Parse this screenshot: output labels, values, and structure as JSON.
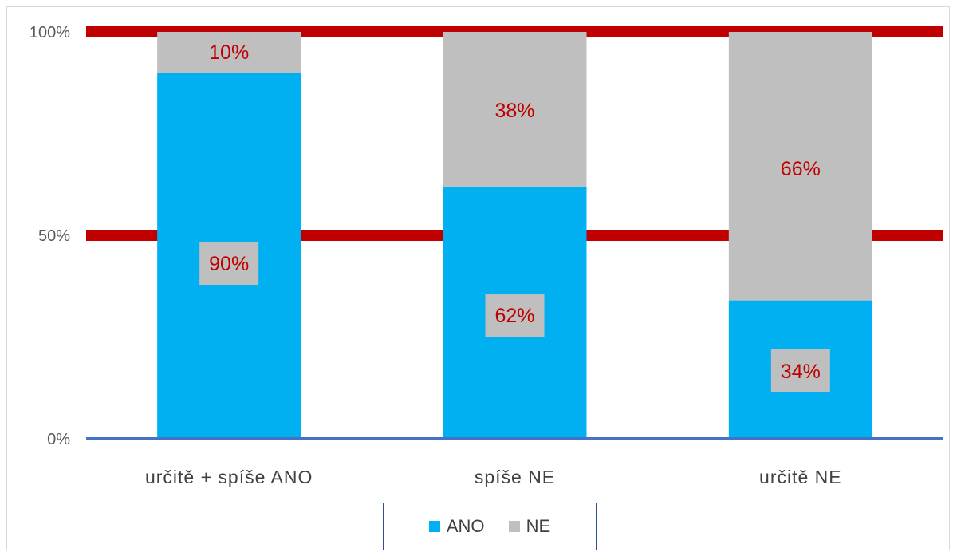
{
  "chart_data": {
    "type": "bar",
    "stacked": true,
    "percent": true,
    "categories": [
      "určitě + spíše ANO",
      "spíše NE",
      "určitě NE"
    ],
    "series": [
      {
        "name": "ANO",
        "values": [
          90,
          62,
          34
        ],
        "labels": [
          "90%",
          "62%",
          "34%"
        ],
        "color": "#00b0f0"
      },
      {
        "name": "NE",
        "values": [
          10,
          38,
          66
        ],
        "labels": [
          "10%",
          "38%",
          "66%"
        ],
        "color": "#bfbfbf"
      }
    ],
    "y_ticks": [
      "0%",
      "50%",
      "100%"
    ],
    "ylim": [
      0,
      100
    ],
    "reference_lines": [
      50,
      100
    ],
    "reference_line_color": "#c00000",
    "axis_color": "#4472c4",
    "data_label_color": "#c00000",
    "legend_position": "bottom",
    "grid": false
  }
}
